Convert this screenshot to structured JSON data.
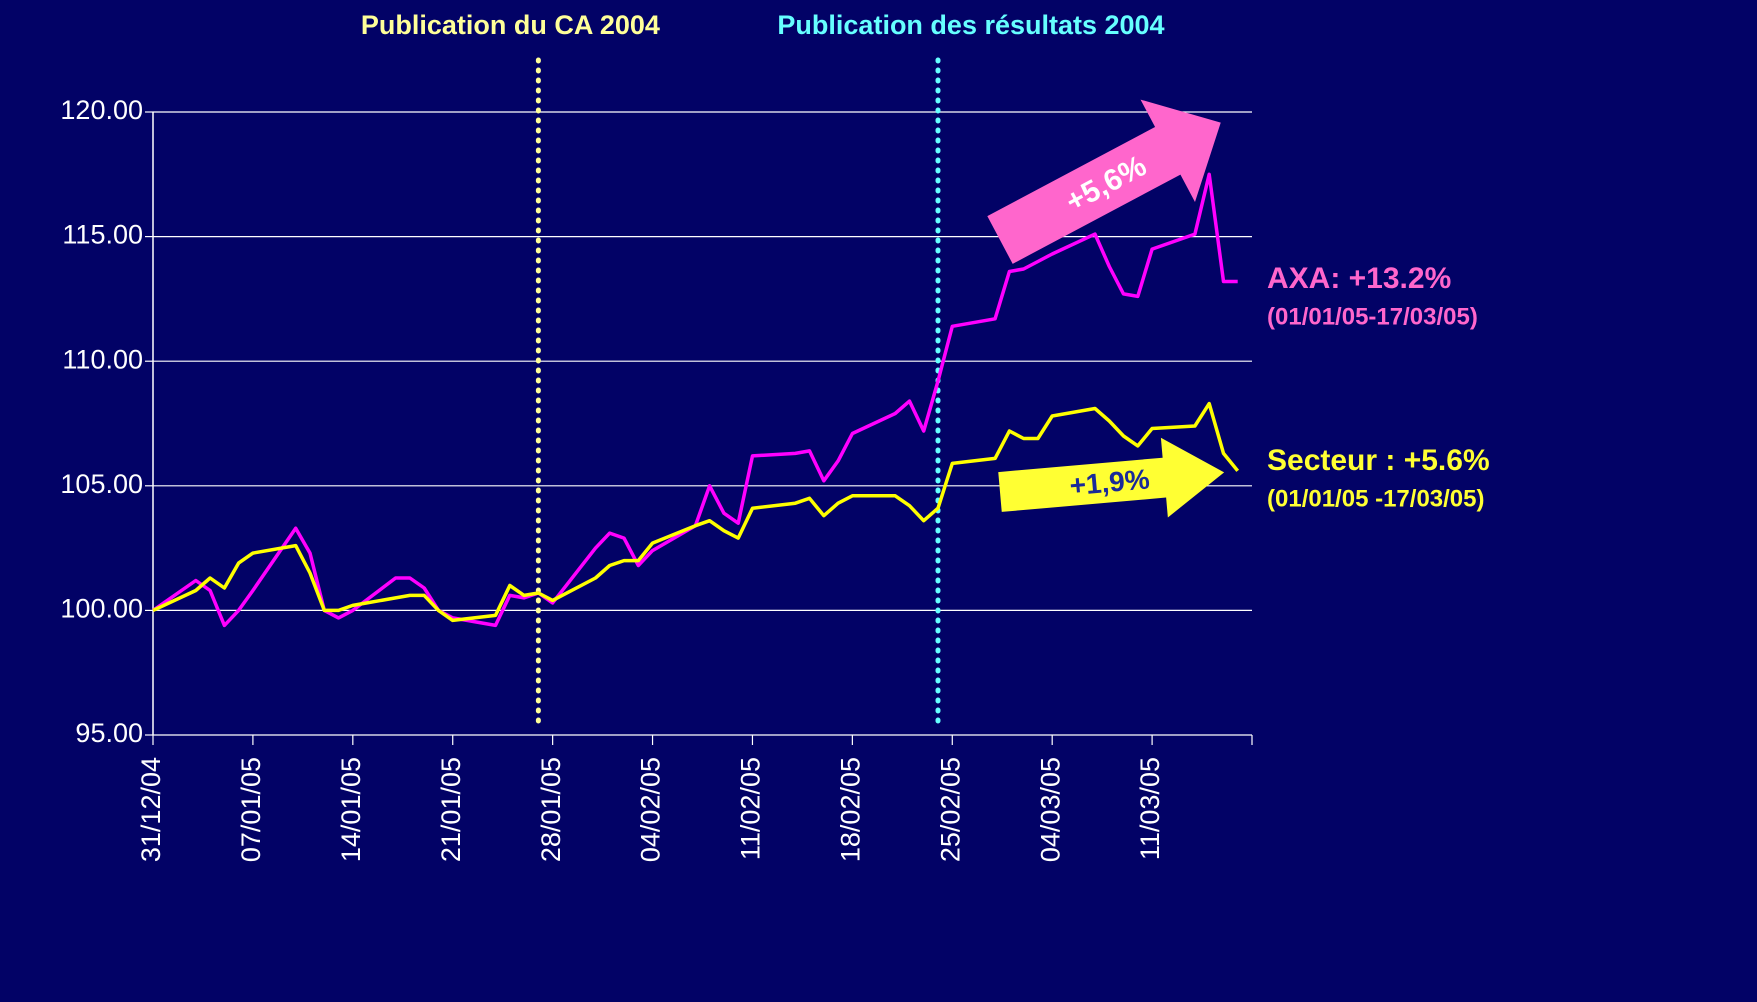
{
  "chart_data": {
    "type": "line",
    "annotations": [
      {
        "text": "Publication du CA 2004",
        "x": 27,
        "color": "#ffff99"
      },
      {
        "text": "Publication des résultats 2004",
        "x": 55,
        "color": "#66ffff"
      }
    ],
    "arrow_labels": [
      "+5,6%",
      "+1,9%"
    ],
    "x": [
      0,
      3,
      4,
      5,
      6,
      7,
      10,
      11,
      12,
      13,
      14,
      17,
      18,
      19,
      20,
      21,
      24,
      25,
      26,
      27,
      28,
      31,
      32,
      33,
      34,
      35,
      38,
      39,
      40,
      41,
      42,
      45,
      46,
      47,
      48,
      49,
      52,
      53,
      54,
      55,
      56,
      59,
      60,
      61,
      62,
      63,
      66,
      67,
      68,
      69,
      70,
      73,
      74,
      75,
      76
    ],
    "series": [
      {
        "name": "AXA: +13.2%",
        "period": "(01/01/05-17/03/05)",
        "color": "#ff00ff",
        "values": [
          100.0,
          101.2,
          100.8,
          99.4,
          100.0,
          100.8,
          103.3,
          102.3,
          100.0,
          99.7,
          100.0,
          101.3,
          101.3,
          100.9,
          100.0,
          99.7,
          99.4,
          100.6,
          100.5,
          100.7,
          100.3,
          102.5,
          103.1,
          102.9,
          101.8,
          102.4,
          103.4,
          105.0,
          103.9,
          103.5,
          106.2,
          106.3,
          106.4,
          105.2,
          106.0,
          107.1,
          107.9,
          108.4,
          107.2,
          109.2,
          111.4,
          111.7,
          113.6,
          113.7,
          114.0,
          114.3,
          115.1,
          113.8,
          112.7,
          112.6,
          114.5,
          115.1,
          117.5,
          113.2,
          113.2
        ]
      },
      {
        "name": "Secteur : +5.6%",
        "period": "(01/01/05 -17/03/05)",
        "color": "#ffff00",
        "values": [
          100.0,
          100.8,
          101.3,
          100.9,
          101.9,
          102.3,
          102.6,
          101.5,
          100.0,
          100.0,
          100.2,
          100.5,
          100.6,
          100.6,
          100.0,
          99.6,
          99.8,
          101.0,
          100.6,
          100.7,
          100.4,
          101.3,
          101.8,
          102.0,
          102.0,
          102.7,
          103.4,
          103.6,
          103.2,
          102.9,
          104.1,
          104.3,
          104.5,
          103.8,
          104.3,
          104.6,
          104.6,
          104.2,
          103.6,
          104.1,
          105.9,
          106.1,
          107.2,
          106.9,
          106.9,
          107.8,
          108.1,
          107.6,
          107.0,
          106.6,
          107.3,
          107.4,
          108.3,
          106.3,
          105.6
        ]
      }
    ],
    "xlim": [
      0,
      77
    ],
    "xticks": [
      {
        "value": 0,
        "label": "31/12/04"
      },
      {
        "value": 7,
        "label": "07/01/05"
      },
      {
        "value": 14,
        "label": "14/01/05"
      },
      {
        "value": 21,
        "label": "21/01/05"
      },
      {
        "value": 28,
        "label": "28/01/05"
      },
      {
        "value": 35,
        "label": "04/02/05"
      },
      {
        "value": 42,
        "label": "11/02/05"
      },
      {
        "value": 49,
        "label": "18/02/05"
      },
      {
        "value": 56,
        "label": "25/02/05"
      },
      {
        "value": 63,
        "label": "04/03/05"
      },
      {
        "value": 70,
        "label": "11/03/05"
      }
    ],
    "ylim": [
      95,
      120
    ],
    "yticks": [
      {
        "value": 95,
        "label": "95.00"
      },
      {
        "value": 100,
        "label": "100.00"
      },
      {
        "value": 105,
        "label": "105.00"
      },
      {
        "value": 110,
        "label": "110.00"
      },
      {
        "value": 115,
        "label": "115.00"
      },
      {
        "value": 120,
        "label": "120.00"
      }
    ],
    "grid": true
  }
}
